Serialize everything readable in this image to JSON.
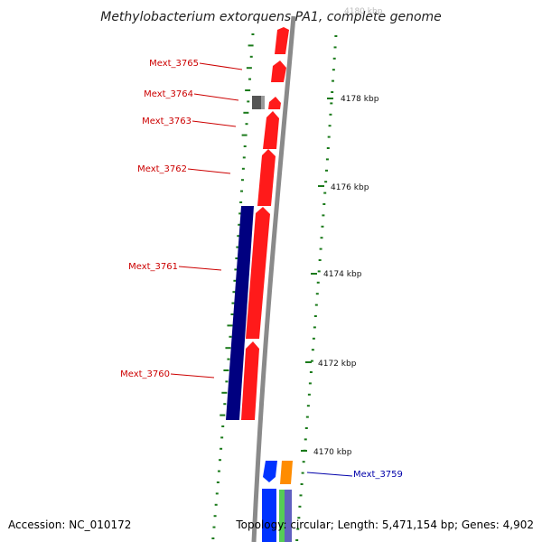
{
  "title": "Methylobacterium extorquens PA1, complete genome",
  "footer": {
    "accession": "Accession: NC_010172",
    "topology": "Topology: circular; Length: 5,471,154 bp; Genes: 4,902"
  },
  "scale_labels": [
    "4180 kbp",
    "4178 kbp",
    "4176 kbp",
    "4174 kbp",
    "4172 kbp",
    "4170 kbp"
  ],
  "gene_labels": [
    {
      "name": "Mext_3765",
      "color": "#cc0000"
    },
    {
      "name": "Mext_3764",
      "color": "#cc0000"
    },
    {
      "name": "Mext_3763",
      "color": "#cc0000"
    },
    {
      "name": "Mext_3762",
      "color": "#cc0000"
    },
    {
      "name": "Mext_3761",
      "color": "#cc0000"
    },
    {
      "name": "Mext_3760",
      "color": "#cc0000"
    },
    {
      "name": "Mext_3759",
      "color": "#0000aa"
    }
  ],
  "colors": {
    "forward_cds": "#ff1a1a",
    "reverse_cds": "#000080",
    "backbone": "#888888",
    "gc_marks": "#1a7a1a",
    "other_feature": "#555555",
    "lower_blue": "#0033ff",
    "lower_orange": "#ff8c00",
    "lower_green": "#55cc55"
  }
}
